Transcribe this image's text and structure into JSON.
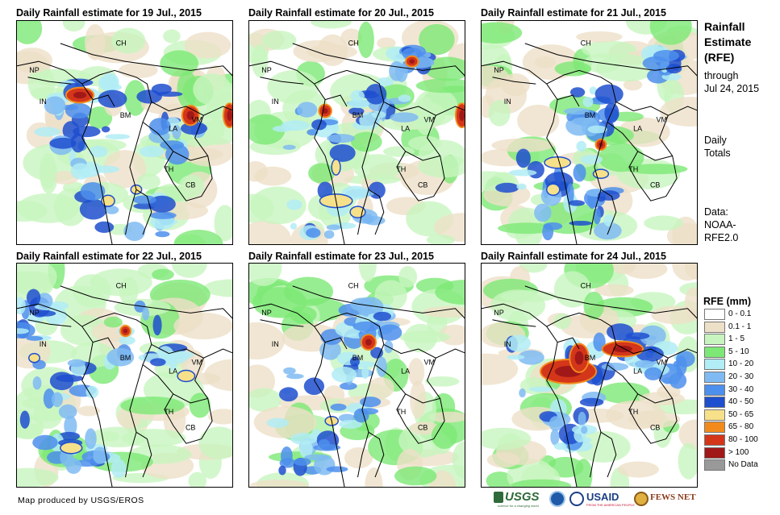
{
  "panels": [
    {
      "title": "Daily Rainfall estimate for 19 Jul., 2015"
    },
    {
      "title": "Daily Rainfall estimate for 20 Jul., 2015"
    },
    {
      "title": "Daily Rainfall estimate for 21 Jul., 2015"
    },
    {
      "title": "Daily Rainfall estimate for 22 Jul., 2015"
    },
    {
      "title": "Daily Rainfall estimate for 23 Jul., 2015"
    },
    {
      "title": "Daily Rainfall estimate for 24 Jul., 2015"
    }
  ],
  "country_labels": {
    "ch": "CH",
    "np": "NP",
    "in": "IN",
    "bm": "BM",
    "la": "LA",
    "vm": "VM",
    "th": "TH",
    "cb": "CB"
  },
  "side": {
    "title_line1": "Rainfall",
    "title_line2": "Estimate",
    "title_line3": "(RFE)",
    "through": "through",
    "date": "Jul 24, 2015",
    "daily": "Daily",
    "totals": "Totals",
    "data_line1": "Data:",
    "data_line2": "NOAA-",
    "data_line3": "RFE2.0"
  },
  "legend": {
    "title": "RFE (mm)",
    "items": [
      {
        "label": "0 - 0.1",
        "color": "#ffffff"
      },
      {
        "label": "0.1 - 1",
        "color": "#ede0c8"
      },
      {
        "label": "1 - 5",
        "color": "#c8f5bf"
      },
      {
        "label": "5 - 10",
        "color": "#7de875"
      },
      {
        "label": "10 - 20",
        "color": "#b2ecf5"
      },
      {
        "label": "20 - 30",
        "color": "#7fbbf2"
      },
      {
        "label": "30 - 40",
        "color": "#4d8fec"
      },
      {
        "label": "40 - 50",
        "color": "#1f4fcf"
      },
      {
        "label": "50 - 65",
        "color": "#f7e08a"
      },
      {
        "label": "65 - 80",
        "color": "#f28b1c"
      },
      {
        "label": "80 - 100",
        "color": "#d4361a"
      },
      {
        "label": "> 100",
        "color": "#a11818"
      },
      {
        "label": "No Data",
        "color": "#999999"
      }
    ]
  },
  "footer": {
    "credit": "Map produced by USGS/EROS"
  },
  "logos": {
    "usgs": "USGS",
    "usgs_tag": "science for a changing world",
    "usaid": "USAID",
    "usaid_tag": "FROM THE AMERICAN PEOPLE",
    "fewsnet": "FEWS NET"
  },
  "panel_rainfall": [
    {
      "blues": [
        [
          0.3,
          0.55,
          0.35,
          0.25
        ],
        [
          0.5,
          0.85,
          0.4,
          0.2
        ],
        [
          0.7,
          0.45,
          0.3,
          0.3
        ],
        [
          0.3,
          0.3,
          0.3,
          0.2
        ]
      ],
      "heavy": [
        [
          0.29,
          0.33,
          0.12,
          0.06
        ],
        [
          0.8,
          0.42,
          0.07,
          0.08
        ],
        [
          0.98,
          0.42,
          0.05,
          0.1
        ]
      ],
      "yellow": [
        [
          0.42,
          0.8,
          0.06,
          0.05
        ],
        [
          0.55,
          0.75,
          0.05,
          0.04
        ]
      ]
    },
    {
      "blues": [
        [
          0.35,
          0.5,
          0.4,
          0.3
        ],
        [
          0.4,
          0.85,
          0.4,
          0.2
        ],
        [
          0.6,
          0.35,
          0.25,
          0.2
        ],
        [
          0.75,
          0.18,
          0.15,
          0.1
        ]
      ],
      "heavy": [
        [
          0.35,
          0.4,
          0.05,
          0.05
        ],
        [
          0.98,
          0.42,
          0.05,
          0.1
        ],
        [
          0.75,
          0.18,
          0.05,
          0.04
        ]
      ],
      "yellow": [
        [
          0.4,
          0.8,
          0.15,
          0.06
        ],
        [
          0.5,
          0.85,
          0.07,
          0.05
        ],
        [
          0.4,
          0.65,
          0.04,
          0.07
        ]
      ]
    },
    {
      "blues": [
        [
          0.35,
          0.6,
          0.5,
          0.4
        ],
        [
          0.45,
          0.85,
          0.4,
          0.2
        ],
        [
          0.85,
          0.2,
          0.1,
          0.12
        ],
        [
          0.5,
          0.4,
          0.2,
          0.2
        ]
      ],
      "heavy": [
        [
          0.55,
          0.55,
          0.04,
          0.04
        ]
      ],
      "yellow": [
        [
          0.35,
          0.63,
          0.12,
          0.05
        ],
        [
          0.33,
          0.75,
          0.06,
          0.05
        ],
        [
          0.55,
          0.68,
          0.07,
          0.04
        ]
      ]
    },
    {
      "blues": [
        [
          0.2,
          0.6,
          0.35,
          0.35
        ],
        [
          0.6,
          0.3,
          0.35,
          0.3
        ],
        [
          0.3,
          0.85,
          0.35,
          0.15
        ],
        [
          0.1,
          0.25,
          0.2,
          0.2
        ]
      ],
      "heavy": [
        [
          0.5,
          0.3,
          0.04,
          0.04
        ]
      ],
      "yellow": [
        [
          0.08,
          0.42,
          0.05,
          0.04
        ],
        [
          0.25,
          0.82,
          0.1,
          0.05
        ],
        [
          0.78,
          0.5,
          0.08,
          0.05
        ]
      ]
    },
    {
      "blues": [
        [
          0.35,
          0.6,
          0.45,
          0.35
        ],
        [
          0.5,
          0.4,
          0.3,
          0.25
        ],
        [
          0.55,
          0.25,
          0.2,
          0.15
        ],
        [
          0.3,
          0.85,
          0.3,
          0.15
        ]
      ],
      "heavy": [
        [
          0.55,
          0.35,
          0.06,
          0.06
        ]
      ],
      "yellow": [
        [
          0.38,
          0.7,
          0.06,
          0.04
        ]
      ]
    },
    {
      "blues": [
        [
          0.35,
          0.5,
          0.45,
          0.3
        ],
        [
          0.65,
          0.4,
          0.3,
          0.2
        ],
        [
          0.85,
          0.45,
          0.2,
          0.15
        ],
        [
          0.4,
          0.75,
          0.2,
          0.15
        ]
      ],
      "heavy": [
        [
          0.4,
          0.48,
          0.25,
          0.1
        ],
        [
          0.45,
          0.42,
          0.08,
          0.12
        ],
        [
          0.65,
          0.38,
          0.18,
          0.06
        ]
      ],
      "yellow": []
    }
  ]
}
